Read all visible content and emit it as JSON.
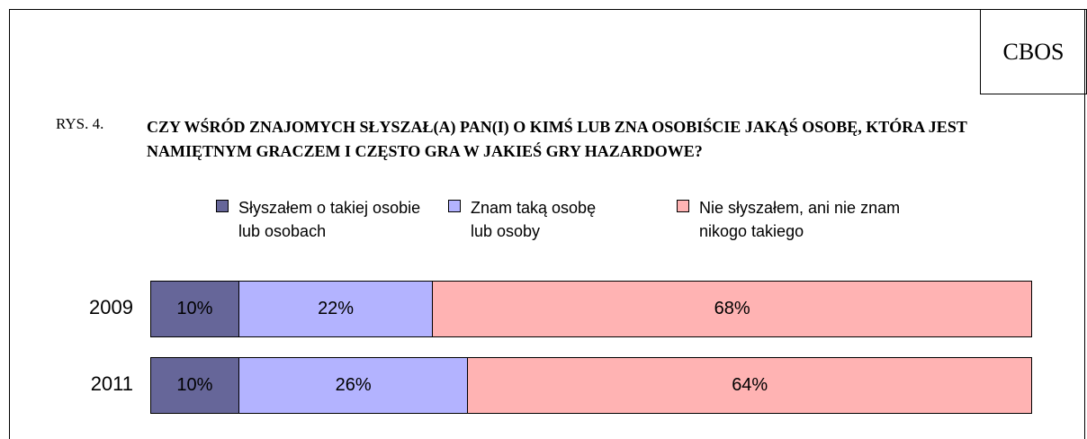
{
  "chart_data": {
    "type": "stacked_bar_horizontal",
    "badge": "CBOS",
    "figure_label": "RYS. 4.",
    "title": "CZY WŚRÓD ZNAJOMYCH SŁYSZAŁ(A) PAN(I) O KIMŚ LUB ZNA OSOBIŚCIE JAKĄŚ OSOBĘ, KTÓRA JEST NAMIĘTNYM GRACZEM I CZĘSTO GRA W JAKIEŚ GRY HAZARDOWE?",
    "categories": [
      "2009",
      "2011"
    ],
    "xlim": [
      0,
      100
    ],
    "series": [
      {
        "name": "Słyszałem o takiej osobie lub osobach",
        "color": "#666699",
        "values": [
          10,
          10
        ],
        "value_labels": [
          "10%",
          "10%"
        ]
      },
      {
        "name": "Znam taką osobę lub osoby",
        "color": "#b3b3ff",
        "values": [
          22,
          26
        ],
        "value_labels": [
          "22%",
          "26%"
        ]
      },
      {
        "name": "Nie słyszałem, ani nie znam nikogo takiego",
        "color": "#ffb3b3",
        "values": [
          68,
          64
        ],
        "value_labels": [
          "68%",
          "64%"
        ]
      }
    ]
  }
}
